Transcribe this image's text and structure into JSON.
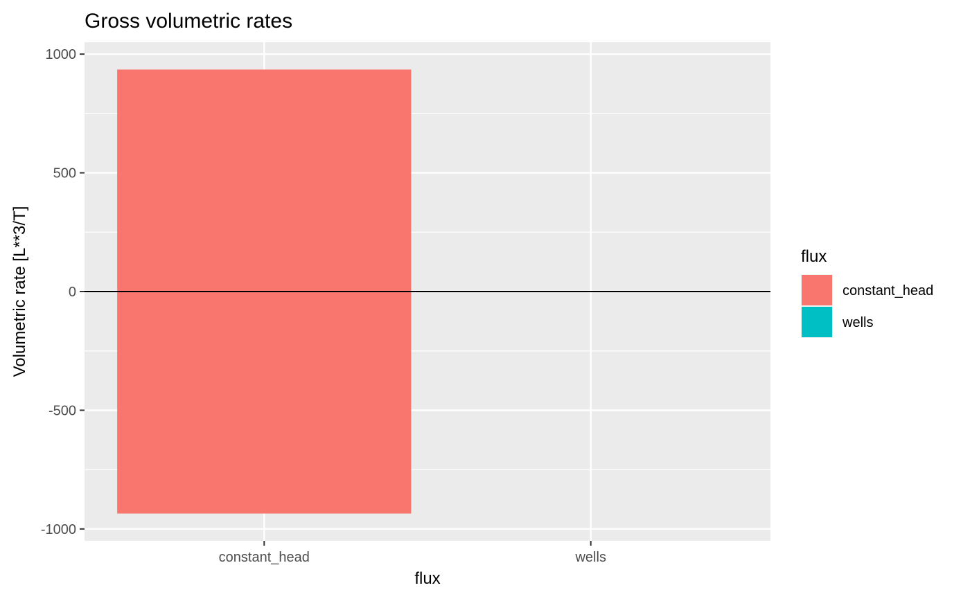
{
  "chart_data": {
    "type": "bar",
    "title": "Gross volumetric rates",
    "xlabel": "flux",
    "ylabel": "Volumetric rate [L**3/T]",
    "categories": [
      "constant_head",
      "wells"
    ],
    "series": [
      {
        "name": "constant_head",
        "color": "#F8766D",
        "positive": 935,
        "negative": -935
      },
      {
        "name": "wells",
        "color": "#00BFC4",
        "positive": 1,
        "negative": -1
      }
    ],
    "ylim": [
      -1000,
      1000
    ],
    "yticks": [
      1000,
      500,
      0,
      -500,
      -1000
    ],
    "ytick_labels": [
      "1000",
      "500",
      "0",
      "-500",
      "-1000"
    ],
    "grid": true,
    "zero_line": true,
    "panel_background": "#EBEBEB",
    "legend": {
      "title": "flux",
      "position": "right",
      "items": [
        "constant_head",
        "wells"
      ]
    }
  }
}
